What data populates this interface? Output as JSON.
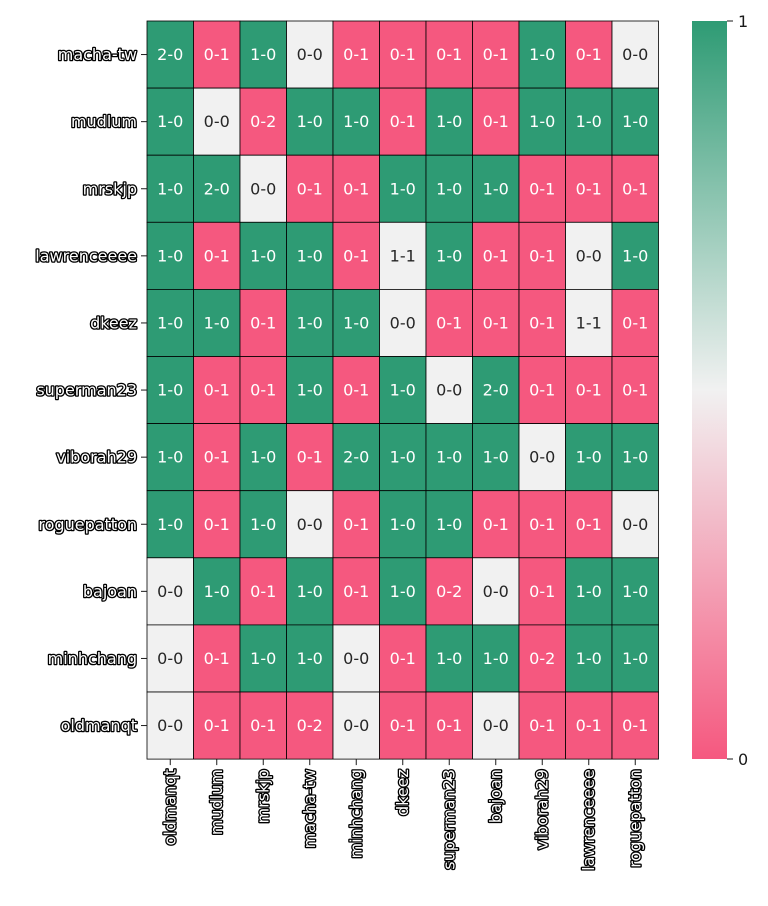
{
  "chart_data": {
    "type": "heatmap",
    "title": "",
    "xlabel": "",
    "ylabel": "",
    "rows": [
      "macha-tw",
      "mudlum",
      "mrskjp",
      "lawrenceeee",
      "dkeez",
      "superman23",
      "viborah29",
      "roguepatton",
      "bajoan",
      "minhchang",
      "oldmanqt"
    ],
    "columns": [
      "oldmanqt",
      "mudlum",
      "mrskjp",
      "macha-tw",
      "minhchang",
      "dkeez",
      "superman23",
      "bajoan",
      "viborah29",
      "lawrenceeee",
      "roguepatton"
    ],
    "cells": [
      [
        "2-0",
        "0-1",
        "1-0",
        "0-0",
        "0-1",
        "0-1",
        "0-1",
        "0-1",
        "1-0",
        "0-1",
        "0-0"
      ],
      [
        "1-0",
        "0-0",
        "0-2",
        "1-0",
        "1-0",
        "0-1",
        "1-0",
        "0-1",
        "1-0",
        "1-0",
        "1-0"
      ],
      [
        "1-0",
        "2-0",
        "0-0",
        "0-1",
        "0-1",
        "1-0",
        "1-0",
        "1-0",
        "0-1",
        "0-1",
        "0-1"
      ],
      [
        "1-0",
        "0-1",
        "1-0",
        "1-0",
        "0-1",
        "1-1",
        "1-0",
        "0-1",
        "0-1",
        "0-0",
        "1-0"
      ],
      [
        "1-0",
        "1-0",
        "0-1",
        "1-0",
        "1-0",
        "0-0",
        "0-1",
        "0-1",
        "0-1",
        "1-1",
        "0-1"
      ],
      [
        "1-0",
        "0-1",
        "0-1",
        "1-0",
        "0-1",
        "1-0",
        "0-0",
        "2-0",
        "0-1",
        "0-1",
        "0-1"
      ],
      [
        "1-0",
        "0-1",
        "1-0",
        "0-1",
        "2-0",
        "1-0",
        "1-0",
        "1-0",
        "0-0",
        "1-0",
        "1-0"
      ],
      [
        "1-0",
        "0-1",
        "1-0",
        "0-0",
        "0-1",
        "1-0",
        "1-0",
        "0-1",
        "0-1",
        "0-1",
        "0-0"
      ],
      [
        "0-0",
        "1-0",
        "0-1",
        "1-0",
        "0-1",
        "1-0",
        "0-2",
        "0-0",
        "0-1",
        "1-0",
        "1-0"
      ],
      [
        "0-0",
        "0-1",
        "1-0",
        "1-0",
        "0-0",
        "0-1",
        "1-0",
        "1-0",
        "0-2",
        "1-0",
        "1-0"
      ],
      [
        "0-0",
        "0-1",
        "0-1",
        "0-2",
        "0-0",
        "0-1",
        "0-1",
        "0-0",
        "0-1",
        "0-1",
        "0-1"
      ]
    ],
    "values": [
      [
        1,
        0,
        1,
        0.5,
        0,
        0,
        0,
        0,
        1,
        0,
        0.5
      ],
      [
        1,
        0.5,
        0,
        1,
        1,
        0,
        1,
        0,
        1,
        1,
        1
      ],
      [
        1,
        1,
        0.5,
        0,
        0,
        1,
        1,
        1,
        0,
        0,
        0
      ],
      [
        1,
        0,
        1,
        1,
        0,
        0.5,
        1,
        0,
        0,
        0.5,
        1
      ],
      [
        1,
        1,
        0,
        1,
        1,
        0.5,
        0,
        0,
        0,
        0.5,
        0
      ],
      [
        1,
        0,
        0,
        1,
        0,
        1,
        0.5,
        1,
        0,
        0,
        0
      ],
      [
        1,
        0,
        1,
        0,
        1,
        1,
        1,
        1,
        0.5,
        1,
        1
      ],
      [
        1,
        0,
        1,
        0.5,
        0,
        1,
        1,
        0,
        0,
        0,
        0.5
      ],
      [
        0.5,
        1,
        0,
        1,
        0,
        1,
        0,
        0.5,
        0,
        1,
        1
      ],
      [
        0.5,
        0,
        1,
        1,
        0.5,
        0,
        1,
        1,
        0,
        1,
        1
      ],
      [
        0.5,
        0,
        0,
        0,
        0.5,
        0,
        0,
        0.5,
        0,
        0,
        0
      ]
    ],
    "colorbar": {
      "min": 0,
      "max": 1,
      "tick_labels": [
        "1",
        "0"
      ],
      "low_color": "#f5587f",
      "mid_color": "#f1f1f1",
      "high_color": "#2e9b74"
    },
    "grid": true
  }
}
